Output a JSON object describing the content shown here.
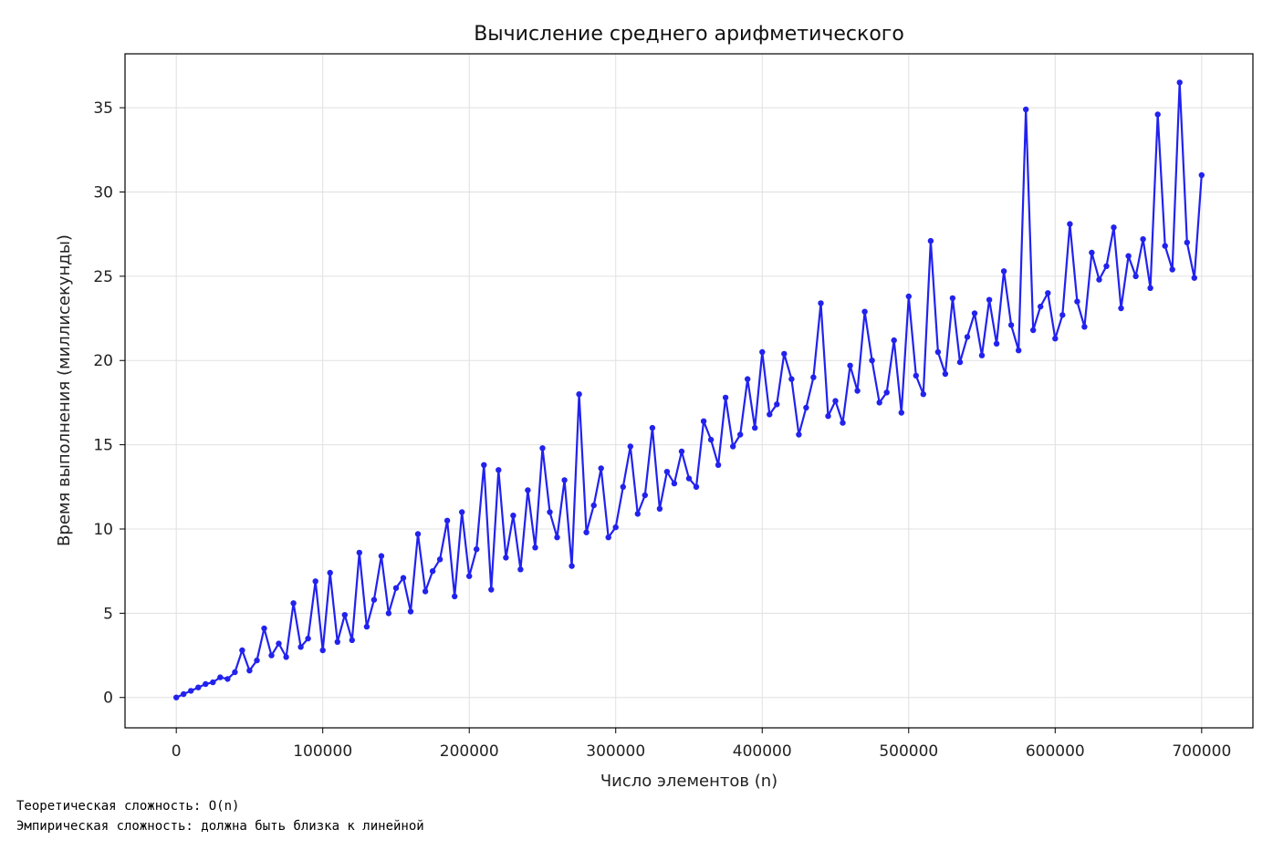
{
  "chart_data": {
    "type": "line",
    "title": "Вычисление среднего арифметического",
    "xlabel": "Число элементов (n)",
    "ylabel": "Время выполнения (миллисекунды)",
    "xlim": [
      -35000,
      735000
    ],
    "ylim": [
      -1.8,
      38.2
    ],
    "xticks": [
      0,
      100000,
      200000,
      300000,
      400000,
      500000,
      600000,
      700000
    ],
    "xtick_labels": [
      "0",
      "100000",
      "200000",
      "300000",
      "400000",
      "500000",
      "600000",
      "700000"
    ],
    "yticks": [
      0,
      5,
      10,
      15,
      20,
      25,
      30,
      35
    ],
    "ytick_labels": [
      "0",
      "5",
      "10",
      "15",
      "20",
      "25",
      "30",
      "35"
    ],
    "grid": true,
    "series": [
      {
        "color": "#2222ee",
        "marker": "circle",
        "x": [
          0,
          5000,
          10000,
          15000,
          20000,
          25000,
          30000,
          35000,
          40000,
          45000,
          50000,
          55000,
          60000,
          65000,
          70000,
          75000,
          80000,
          85000,
          90000,
          95000,
          100000,
          105000,
          110000,
          115000,
          120000,
          125000,
          130000,
          135000,
          140000,
          145000,
          150000,
          155000,
          160000,
          165000,
          170000,
          175000,
          180000,
          185000,
          190000,
          195000,
          200000,
          205000,
          210000,
          215000,
          220000,
          225000,
          230000,
          235000,
          240000,
          245000,
          250000,
          255000,
          260000,
          265000,
          270000,
          275000,
          280000,
          285000,
          290000,
          295000,
          300000,
          305000,
          310000,
          315000,
          320000,
          325000,
          330000,
          335000,
          340000,
          345000,
          350000,
          355000,
          360000,
          365000,
          370000,
          375000,
          380000,
          385000,
          390000,
          395000,
          400000,
          405000,
          410000,
          415000,
          420000,
          425000,
          430000,
          435000,
          440000,
          445000,
          450000,
          455000,
          460000,
          465000,
          470000,
          475000,
          480000,
          485000,
          490000,
          495000,
          500000,
          505000,
          510000,
          515000,
          520000,
          525000,
          530000,
          535000,
          540000,
          545000,
          550000,
          555000,
          560000,
          565000,
          570000,
          575000,
          580000,
          585000,
          590000,
          595000,
          600000,
          605000,
          610000,
          615000,
          620000,
          625000,
          630000,
          635000,
          640000,
          645000,
          650000,
          655000,
          660000,
          665000,
          670000,
          675000,
          680000,
          685000,
          690000,
          695000,
          700000
        ],
        "y": [
          0.0,
          0.2,
          0.4,
          0.6,
          0.8,
          0.9,
          1.2,
          1.1,
          1.5,
          2.8,
          1.6,
          2.2,
          4.1,
          2.5,
          3.2,
          2.4,
          5.6,
          3.0,
          3.5,
          6.9,
          2.8,
          7.4,
          3.3,
          4.9,
          3.4,
          8.6,
          4.2,
          5.8,
          8.4,
          5.0,
          6.5,
          7.1,
          5.1,
          9.7,
          6.3,
          7.5,
          8.2,
          10.5,
          6.0,
          11.0,
          7.2,
          8.8,
          13.8,
          6.4,
          13.5,
          8.3,
          10.8,
          7.6,
          12.3,
          8.9,
          14.8,
          11.0,
          9.5,
          12.9,
          7.8,
          18.0,
          9.8,
          11.4,
          13.6,
          9.5,
          10.1,
          12.5,
          14.9,
          10.9,
          12.0,
          16.0,
          11.2,
          13.4,
          12.7,
          14.6,
          13.0,
          12.5,
          16.4,
          15.3,
          13.8,
          17.8,
          14.9,
          15.6,
          18.9,
          16.0,
          20.5,
          16.8,
          17.4,
          20.4,
          18.9,
          15.6,
          17.2,
          19.0,
          23.4,
          16.7,
          17.6,
          16.3,
          19.7,
          18.2,
          22.9,
          20.0,
          17.5,
          18.1,
          21.2,
          16.9,
          23.8,
          19.1,
          18.0,
          27.1,
          20.5,
          19.2,
          23.7,
          19.9,
          21.4,
          22.8,
          20.3,
          23.6,
          21.0,
          25.3,
          22.1,
          20.6,
          34.9,
          21.8,
          23.2,
          24.0,
          21.3,
          22.7,
          28.1,
          23.5,
          22.0,
          26.4,
          24.8,
          25.6,
          27.9,
          23.1,
          26.2,
          25.0,
          27.2,
          24.3,
          34.6,
          26.8,
          25.4,
          36.5,
          27.0,
          24.9,
          31.0
        ]
      }
    ]
  },
  "output_text": [
    "Теоретическая сложность: O(n)",
    "Эмпирическая сложность: должна быть близка к линейной"
  ]
}
